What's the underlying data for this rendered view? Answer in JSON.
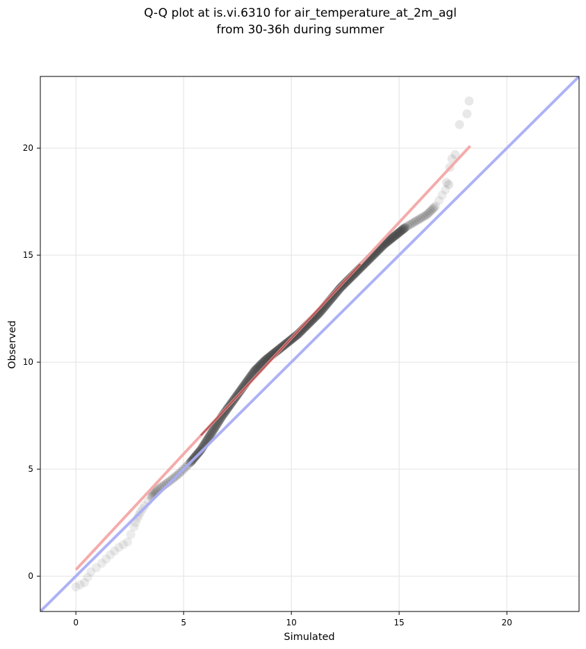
{
  "chart_data": {
    "type": "scatter",
    "title_lines": [
      "Q-Q plot at is.vi.6310 for air_temperature_at_2m_agl",
      "from 30-36h during summer"
    ],
    "xlabel": "Simulated",
    "ylabel": "Observed",
    "xlim": [
      -1.65,
      23.35
    ],
    "ylim": [
      -1.65,
      23.35
    ],
    "xticks": [
      0,
      5,
      10,
      15,
      20
    ],
    "yticks": [
      0,
      5,
      10,
      15,
      20
    ],
    "grid": true,
    "colors": {
      "points": "#444444",
      "fit_line": "#f4a6a6",
      "fit_line_core": "#8b1a1a",
      "identity_line": "#a9aef5"
    },
    "identity_line": {
      "x": [
        -1.65,
        23.35
      ],
      "y": [
        -1.65,
        23.35
      ]
    },
    "fit_line": {
      "x": [
        0.0,
        18.3
      ],
      "y": [
        0.3,
        20.1
      ]
    },
    "quantile_curve": {
      "x": [
        0.0,
        0.4,
        0.7,
        1.2,
        1.6,
        2.0,
        2.4,
        2.7,
        2.85,
        3.0,
        3.2,
        3.5,
        3.8,
        4.3,
        4.8,
        5.3,
        5.8,
        6.3,
        6.8,
        7.3,
        7.8,
        8.3,
        8.8,
        9.3,
        9.8,
        10.3,
        10.8,
        11.3,
        11.8,
        12.3,
        12.8,
        13.3,
        13.8,
        14.3,
        14.8,
        15.3,
        15.8,
        16.3,
        16.7,
        17.0,
        17.3
      ],
      "y": [
        -0.5,
        -0.3,
        0.2,
        0.6,
        1.0,
        1.35,
        1.6,
        2.3,
        2.7,
        3.0,
        3.3,
        3.7,
        4.05,
        4.4,
        4.8,
        5.3,
        5.9,
        6.7,
        7.5,
        8.2,
        8.9,
        9.6,
        10.1,
        10.5,
        10.9,
        11.3,
        11.8,
        12.3,
        12.9,
        13.5,
        14.0,
        14.5,
        15.0,
        15.5,
        15.9,
        16.3,
        16.6,
        16.9,
        17.3,
        17.8,
        18.3
      ]
    },
    "tail_points": {
      "x": [
        17.2,
        17.35,
        17.45,
        17.6,
        17.8,
        18.15,
        18.25
      ],
      "y": [
        18.4,
        19.1,
        19.5,
        19.7,
        21.1,
        21.6,
        22.2
      ]
    }
  }
}
